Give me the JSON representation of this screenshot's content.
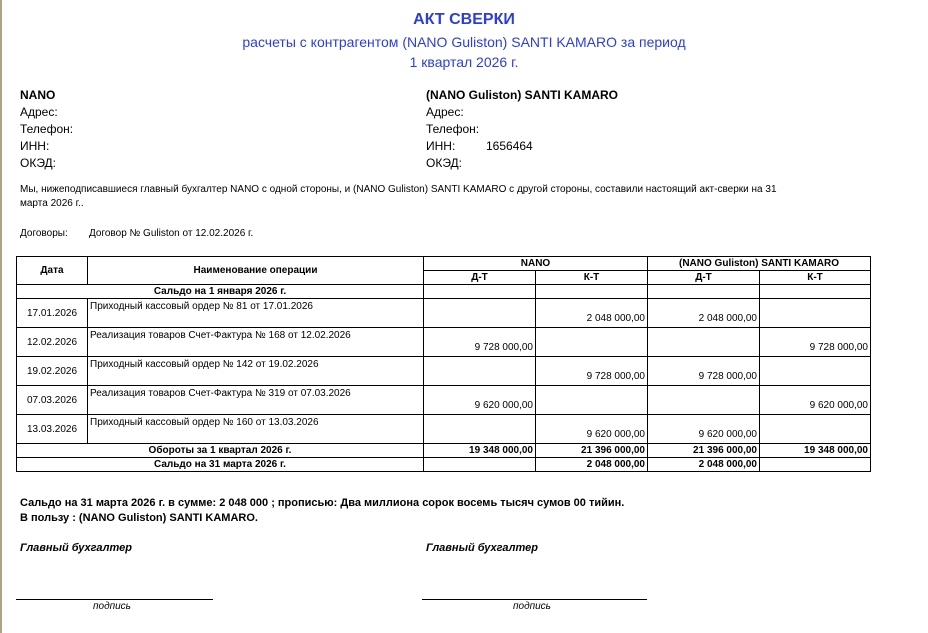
{
  "header": {
    "title": "АКТ СВЕРКИ",
    "subtitle": "расчеты с контрагентом (NANO Guliston) SANTI KAMARO за период",
    "period": "1 квартал 2026 г."
  },
  "left_party": {
    "name": "NANO",
    "address_label": "Адрес:",
    "phone_label": "Телефон:",
    "inn_label": "ИНН:",
    "inn": "",
    "oked_label": "ОКЭД:"
  },
  "right_party": {
    "name": "(NANO Guliston) SANTI KAMARO",
    "address_label": "Адрес:",
    "phone_label": "Телефон:",
    "inn_label": "ИНН:",
    "inn": "1656464",
    "oked_label": "ОКЭД:"
  },
  "intro_line1": "Мы, нижеподписавшиеся главный бухгалтер  NANO с одной стороны, и  (NANO Guliston) SANTI KAMARO  с другой стороны, составили настоящий акт-сверки на 31",
  "intro_line2": "марта 2026 г..",
  "contracts_label": "Договоры:",
  "contracts_value": "Договор № Guliston от 12.02.2026 г.",
  "table": {
    "col_date": "Дата",
    "col_operation": "Наименование  операции",
    "party1": "NANO",
    "party2": "(NANO Guliston) SANTI KAMARO",
    "dt": "Д-Т",
    "kt": "К-Т",
    "opening": "Сальдо на  1 января 2026 г.",
    "rows": [
      {
        "date": "17.01.2026",
        "operation": "Приходный кассовый ордер № 81 от 17.01.2026",
        "d1": "",
        "k1": "2 048 000,00",
        "d2": "2 048 000,00",
        "k2": ""
      },
      {
        "date": "12.02.2026",
        "operation": "Реализация товаров Счет-Фактура № 168 от 12.02.2026",
        "d1": "9 728 000,00",
        "k1": "",
        "d2": "",
        "k2": "9 728 000,00"
      },
      {
        "date": "19.02.2026",
        "operation": "Приходный кассовый ордер № 142 от 19.02.2026",
        "d1": "",
        "k1": "9 728 000,00",
        "d2": "9 728 000,00",
        "k2": ""
      },
      {
        "date": "07.03.2026",
        "operation": "Реализация товаров Счет-Фактура № 319 от 07.03.2026",
        "d1": "9 620 000,00",
        "k1": "",
        "d2": "",
        "k2": "9 620 000,00"
      },
      {
        "date": "13.03.2026",
        "operation": "Приходный кассовый ордер № 160 от 13.03.2026",
        "d1": "",
        "k1": "9 620 000,00",
        "d2": "9 620 000,00",
        "k2": ""
      }
    ],
    "turnover": {
      "label": "Обороты за 1 квартал 2026 г.",
      "d1": "19 348 000,00",
      "k1": "21 396 000,00",
      "d2": "21 396 000,00",
      "k2": "19 348 000,00"
    },
    "closing": {
      "label": "Сальдо на  31 марта 2026 г.",
      "d1": "",
      "k1": "2 048 000,00",
      "d2": "2 048 000,00",
      "k2": ""
    }
  },
  "summary_line1": "Сальдо на 31 марта 2026 г.   в сумме: 2 048 000 ; прописью: Два миллиона сорок восемь тысяч сумов 00 тийин.",
  "summary_line2": "В пользу : (NANO Guliston) SANTI KAMARO.",
  "sign_left": {
    "role": "Главный бухгалтер",
    "caption": "подпись"
  },
  "sign_right": {
    "role": "Главный бухгалтер",
    "caption": "подпись"
  }
}
